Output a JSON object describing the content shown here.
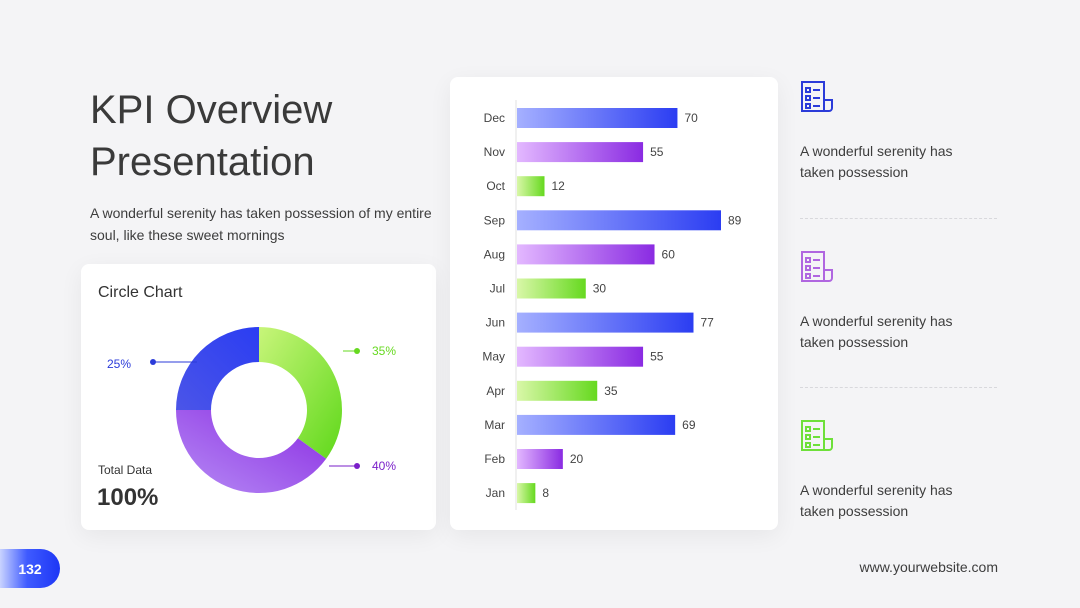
{
  "header": {
    "title_line1": "KPI Overview",
    "title_line2": "Presentation",
    "subtitle": "A wonderful serenity has taken possession of my entire soul, like these sweet mornings"
  },
  "donut_card": {
    "title": "Circle Chart",
    "total_label": "Total Data",
    "total_value": "100%"
  },
  "features": [
    {
      "text": "A wonderful serenity has taken possession",
      "icon": "document-list-icon",
      "color": "#2b3bd9"
    },
    {
      "text": "A wonderful serenity has taken possession",
      "icon": "document-list-icon",
      "color": "#b066e0"
    },
    {
      "text": "A wonderful serenity has taken possession",
      "icon": "document-list-icon",
      "color": "#6ee03a"
    }
  ],
  "footer": {
    "page_number": "132",
    "website": "www.yourwebsite.com"
  },
  "colors": {
    "blue": "#2b3df2",
    "purple": "#8a2be2",
    "green": "#66d91f",
    "blue_light": "#a5b0ff",
    "purple_light": "#e3b8ff",
    "green_light": "#d9f7a8"
  },
  "chart_data": [
    {
      "type": "pie",
      "title": "Circle Chart",
      "slices": [
        {
          "label": "35%",
          "value": 35,
          "color": "#66d91f"
        },
        {
          "label": "40%",
          "value": 40,
          "color": "#8a2be2"
        },
        {
          "label": "25%",
          "value": 25,
          "color": "#2b3df2"
        }
      ]
    },
    {
      "type": "bar",
      "orientation": "horizontal",
      "categories": [
        "Dec",
        "Nov",
        "Oct",
        "Sep",
        "Aug",
        "Jul",
        "Jun",
        "May",
        "Apr",
        "Mar",
        "Feb",
        "Jan"
      ],
      "values": [
        70,
        55,
        12,
        89,
        60,
        30,
        77,
        55,
        35,
        69,
        20,
        8
      ],
      "bar_colors": [
        "blue",
        "purple",
        "green",
        "blue",
        "purple",
        "green",
        "blue",
        "purple",
        "green",
        "blue",
        "purple",
        "green"
      ],
      "xlim": [
        0,
        100
      ],
      "grid": false
    }
  ]
}
